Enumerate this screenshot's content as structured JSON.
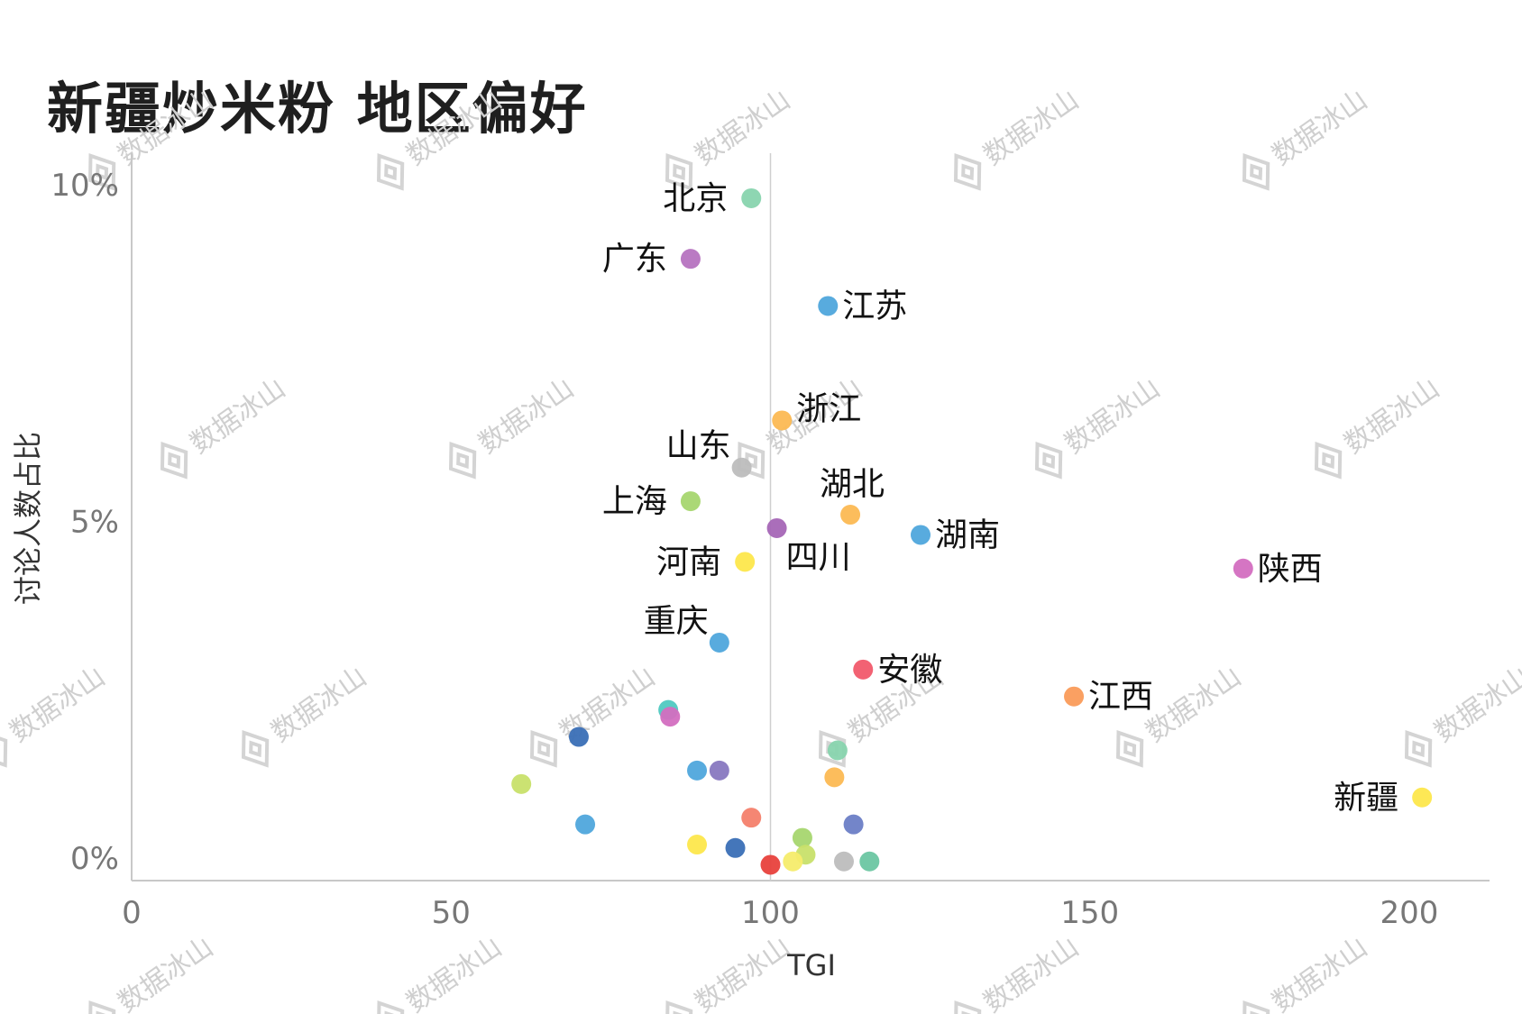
{
  "watermark": {
    "text": "数据冰山",
    "icon": "diamond-logo-icon"
  },
  "chart_data": {
    "type": "scatter",
    "title": "新疆炒米粉 地区偏好",
    "xlabel": "TGI",
    "ylabel": "讨论人数占比",
    "xlim": [
      0,
      213
    ],
    "ylim": [
      -0.3,
      10.2
    ],
    "x_ticks": [
      {
        "value": 0,
        "label": "0"
      },
      {
        "value": 50,
        "label": "50"
      },
      {
        "value": 100,
        "label": "100"
      },
      {
        "value": 150,
        "label": "150"
      },
      {
        "value": 200,
        "label": "200"
      }
    ],
    "y_ticks": [
      {
        "value": 0,
        "label": "0%"
      },
      {
        "value": 5,
        "label": "5%"
      },
      {
        "value": 10,
        "label": "10%"
      }
    ],
    "reference_line_x": 100,
    "grid": false,
    "legend": "none",
    "points": [
      {
        "label": "北京",
        "x": 97,
        "y": 9.8,
        "color": "#88d4ae",
        "label_pos": "left"
      },
      {
        "label": "广东",
        "x": 87.5,
        "y": 8.9,
        "color": "#b673c0",
        "label_pos": "left"
      },
      {
        "label": "江苏",
        "x": 109,
        "y": 8.2,
        "color": "#4fa6dc",
        "label_pos": "right"
      },
      {
        "label": "浙江",
        "x": 101.8,
        "y": 6.5,
        "color": "#fcb953",
        "label_pos": "upper-right"
      },
      {
        "label": "山东",
        "x": 95.5,
        "y": 5.8,
        "color": "#bdbdbd",
        "label_pos": "upper-left"
      },
      {
        "label": "上海",
        "x": 87.5,
        "y": 5.3,
        "color": "#a7d66f",
        "label_pos": "left"
      },
      {
        "label": "湖北",
        "x": 112.5,
        "y": 5.1,
        "color": "#fcb953",
        "label_pos": "above"
      },
      {
        "label": "四川",
        "x": 101,
        "y": 4.9,
        "color": "#a566b6",
        "label_pos": "lower-right"
      },
      {
        "label": "湖南",
        "x": 123.5,
        "y": 4.8,
        "color": "#4fa6dc",
        "label_pos": "right"
      },
      {
        "label": "河南",
        "x": 96,
        "y": 4.4,
        "color": "#fde74c",
        "label_pos": "left"
      },
      {
        "label": "陕西",
        "x": 174,
        "y": 4.3,
        "color": "#d36ec0",
        "label_pos": "right"
      },
      {
        "label": "重庆",
        "x": 92,
        "y": 3.2,
        "color": "#4fa6dc",
        "label_pos": "upper-left"
      },
      {
        "label": "安徽",
        "x": 114.5,
        "y": 2.8,
        "color": "#f15a6b",
        "label_pos": "right"
      },
      {
        "label": "江西",
        "x": 147.5,
        "y": 2.4,
        "color": "#fa9b5a",
        "label_pos": "right"
      },
      {
        "label": "新疆",
        "x": 202,
        "y": 0.9,
        "color": "#fde74c",
        "label_pos": "left"
      },
      {
        "label": "",
        "x": 84,
        "y": 2.2,
        "color": "#4fc9c1",
        "label_pos": "none"
      },
      {
        "label": "",
        "x": 84.3,
        "y": 2.1,
        "color": "#d36ec0",
        "label_pos": "none"
      },
      {
        "label": "",
        "x": 70,
        "y": 1.8,
        "color": "#3a6fb6",
        "label_pos": "none"
      },
      {
        "label": "",
        "x": 61,
        "y": 1.1,
        "color": "#c8e06a",
        "label_pos": "none"
      },
      {
        "label": "",
        "x": 88.5,
        "y": 1.3,
        "color": "#4fa6dc",
        "label_pos": "none"
      },
      {
        "label": "",
        "x": 92,
        "y": 1.3,
        "color": "#8878c0",
        "label_pos": "none"
      },
      {
        "label": "",
        "x": 110.5,
        "y": 1.6,
        "color": "#88d4ae",
        "label_pos": "none"
      },
      {
        "label": "",
        "x": 110,
        "y": 1.2,
        "color": "#fcb953",
        "label_pos": "none"
      },
      {
        "label": "",
        "x": 71,
        "y": 0.5,
        "color": "#4fa6dc",
        "label_pos": "none"
      },
      {
        "label": "",
        "x": 97,
        "y": 0.6,
        "color": "#f47f6b",
        "label_pos": "none"
      },
      {
        "label": "",
        "x": 113,
        "y": 0.5,
        "color": "#6c7ec6",
        "label_pos": "none"
      },
      {
        "label": "",
        "x": 88.5,
        "y": 0.2,
        "color": "#fde74c",
        "label_pos": "none"
      },
      {
        "label": "",
        "x": 94.5,
        "y": 0.15,
        "color": "#3a6fb6",
        "label_pos": "none"
      },
      {
        "label": "",
        "x": 105,
        "y": 0.3,
        "color": "#a7d66f",
        "label_pos": "none"
      },
      {
        "label": "",
        "x": 105.5,
        "y": 0.05,
        "color": "#c8e06a",
        "label_pos": "none"
      },
      {
        "label": "",
        "x": 103.5,
        "y": -0.05,
        "color": "#f5ec6c",
        "label_pos": "none"
      },
      {
        "label": "",
        "x": 100,
        "y": -0.1,
        "color": "#e8413c",
        "label_pos": "none"
      },
      {
        "label": "",
        "x": 111.5,
        "y": -0.05,
        "color": "#bdbdbd",
        "label_pos": "none"
      },
      {
        "label": "",
        "x": 115.5,
        "y": -0.05,
        "color": "#6cc6a2",
        "label_pos": "none"
      }
    ]
  }
}
